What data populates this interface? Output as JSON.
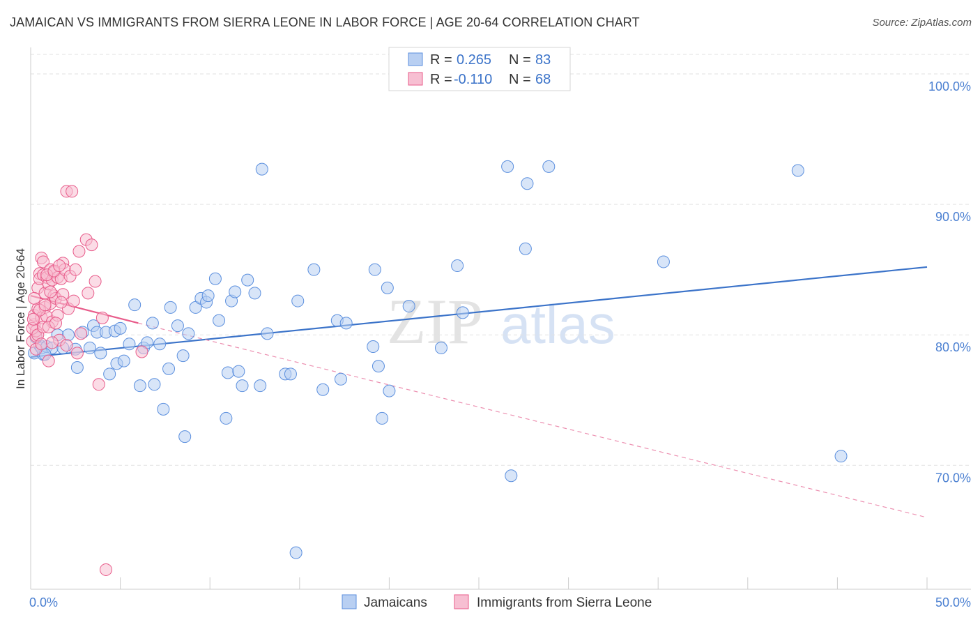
{
  "title": "JAMAICAN VS IMMIGRANTS FROM SIERRA LEONE IN LABOR FORCE | AGE 20-64 CORRELATION CHART",
  "source": "Source: ZipAtlas.com",
  "watermark": {
    "zip": "ZIP",
    "atlas": "atlas"
  },
  "colors": {
    "blue": "#5b8fde",
    "blue_fill": "#b8cff2",
    "pink": "#e85b8a",
    "pink_fill": "#f7bfd2",
    "tick": "#4a7fd1"
  },
  "legend": {
    "rows": [
      {
        "r_label": "R =",
        "r_value": "0.265",
        "n_label": "N =",
        "n_value": "83"
      },
      {
        "r_label": "R =",
        "r_value": "-0.110",
        "n_label": "N =",
        "n_value": "68"
      }
    ]
  },
  "bottom_legend": [
    "Jamaicans",
    "Immigrants from Sierra Leone"
  ],
  "chart_data": {
    "type": "scatter",
    "title": "JAMAICAN VS IMMIGRANTS FROM SIERRA LEONE IN LABOR FORCE | AGE 20-64 CORRELATION CHART",
    "xlabel": "",
    "ylabel": "In Labor Force | Age 20-64",
    "xlim": [
      0,
      50
    ],
    "ylim": [
      60.5,
      101.5
    ],
    "x_tick_labels": [
      "0.0%",
      "50.0%"
    ],
    "y_ticks": [
      70,
      80,
      90,
      100
    ],
    "y_tick_labels": [
      "70.0%",
      "80.0%",
      "90.0%",
      "100.0%"
    ],
    "grid": true,
    "legend_position": "top-center",
    "series": [
      {
        "name": "Jamaicans",
        "color": "#5b8fde",
        "trend": {
          "x": [
            0,
            50
          ],
          "y": [
            78.3,
            85.2
          ]
        },
        "points": [
          [
            0.2,
            78.6
          ],
          [
            0.5,
            79.2
          ],
          [
            0.7,
            78.5
          ],
          [
            0.6,
            79.0
          ],
          [
            0.9,
            79.1
          ],
          [
            1.2,
            79.0
          ],
          [
            1.5,
            80.0
          ],
          [
            1.8,
            79.0
          ],
          [
            2.1,
            80.0
          ],
          [
            2.5,
            78.9
          ],
          [
            2.6,
            77.5
          ],
          [
            2.9,
            80.2
          ],
          [
            3.3,
            79.0
          ],
          [
            3.5,
            80.7
          ],
          [
            3.7,
            80.2
          ],
          [
            3.9,
            78.6
          ],
          [
            4.2,
            80.2
          ],
          [
            4.4,
            77.0
          ],
          [
            4.7,
            80.3
          ],
          [
            4.8,
            77.8
          ],
          [
            5.0,
            80.5
          ],
          [
            5.2,
            78.0
          ],
          [
            5.5,
            79.3
          ],
          [
            5.8,
            82.3
          ],
          [
            6.1,
            76.1
          ],
          [
            6.3,
            79.0
          ],
          [
            6.5,
            79.4
          ],
          [
            6.8,
            80.9
          ],
          [
            6.9,
            76.2
          ],
          [
            7.2,
            79.3
          ],
          [
            7.4,
            74.3
          ],
          [
            7.7,
            77.4
          ],
          [
            7.8,
            82.1
          ],
          [
            8.2,
            80.7
          ],
          [
            8.5,
            78.4
          ],
          [
            8.6,
            72.2
          ],
          [
            8.8,
            80.1
          ],
          [
            9.2,
            82.1
          ],
          [
            9.5,
            82.8
          ],
          [
            9.8,
            82.5
          ],
          [
            9.9,
            83.0
          ],
          [
            10.3,
            84.3
          ],
          [
            10.5,
            81.1
          ],
          [
            10.9,
            73.6
          ],
          [
            11.0,
            77.1
          ],
          [
            11.2,
            82.6
          ],
          [
            11.4,
            83.3
          ],
          [
            11.6,
            77.2
          ],
          [
            11.8,
            76.1
          ],
          [
            12.1,
            84.2
          ],
          [
            12.5,
            83.2
          ],
          [
            12.8,
            76.1
          ],
          [
            12.9,
            92.7
          ],
          [
            13.2,
            80.1
          ],
          [
            14.2,
            77.0
          ],
          [
            14.5,
            77.0
          ],
          [
            14.8,
            63.3
          ],
          [
            14.9,
            82.6
          ],
          [
            15.8,
            85.0
          ],
          [
            16.3,
            75.8
          ],
          [
            17.1,
            81.1
          ],
          [
            17.3,
            76.6
          ],
          [
            17.6,
            80.9
          ],
          [
            19.1,
            79.1
          ],
          [
            19.2,
            85.0
          ],
          [
            19.4,
            77.6
          ],
          [
            19.6,
            73.6
          ],
          [
            19.9,
            83.6
          ],
          [
            20.0,
            75.7
          ],
          [
            21.1,
            82.2
          ],
          [
            22.9,
            79.0
          ],
          [
            23.8,
            85.3
          ],
          [
            24.1,
            81.7
          ],
          [
            26.6,
            92.9
          ],
          [
            26.8,
            69.2
          ],
          [
            27.6,
            86.6
          ],
          [
            27.7,
            91.6
          ],
          [
            28.9,
            92.9
          ],
          [
            35.3,
            85.6
          ],
          [
            42.8,
            92.6
          ],
          [
            45.2,
            70.7
          ],
          [
            0.3,
            79.8
          ],
          [
            0.8,
            78.5
          ]
        ]
      },
      {
        "name": "Immigrants from Sierra Leone",
        "color": "#e85b8a",
        "trend": {
          "x": [
            0,
            6
          ],
          "y": [
            83.0,
            80.9
          ]
        },
        "trend_dashed": {
          "x": [
            6,
            50
          ],
          "y": [
            80.9,
            66.0
          ]
        },
        "points": [
          [
            0.1,
            79.5
          ],
          [
            0.2,
            80.8
          ],
          [
            0.2,
            81.5
          ],
          [
            0.3,
            79.9
          ],
          [
            0.3,
            80.3
          ],
          [
            0.4,
            82.0
          ],
          [
            0.4,
            83.6
          ],
          [
            0.5,
            84.7
          ],
          [
            0.5,
            84.3
          ],
          [
            0.6,
            85.9
          ],
          [
            0.6,
            81.3
          ],
          [
            0.7,
            84.6
          ],
          [
            0.7,
            85.6
          ],
          [
            0.8,
            83.2
          ],
          [
            0.8,
            82.1
          ],
          [
            0.9,
            84.4
          ],
          [
            0.9,
            81.4
          ],
          [
            1.0,
            83.9
          ],
          [
            1.0,
            78.0
          ],
          [
            1.1,
            85.0
          ],
          [
            1.1,
            82.4
          ],
          [
            1.2,
            84.2
          ],
          [
            1.2,
            81.0
          ],
          [
            1.3,
            84.8
          ],
          [
            1.3,
            83.0
          ],
          [
            1.4,
            82.8
          ],
          [
            1.5,
            84.4
          ],
          [
            1.5,
            81.5
          ],
          [
            1.6,
            79.6
          ],
          [
            1.7,
            84.3
          ],
          [
            1.8,
            85.5
          ],
          [
            1.8,
            83.1
          ],
          [
            1.9,
            85.0
          ],
          [
            2.0,
            91.0
          ],
          [
            2.0,
            79.2
          ],
          [
            2.1,
            82.0
          ],
          [
            2.2,
            84.5
          ],
          [
            2.3,
            91.0
          ],
          [
            2.4,
            82.6
          ],
          [
            2.5,
            85.0
          ],
          [
            2.6,
            78.6
          ],
          [
            2.7,
            86.4
          ],
          [
            2.8,
            80.1
          ],
          [
            3.1,
            87.3
          ],
          [
            3.2,
            83.2
          ],
          [
            3.4,
            86.9
          ],
          [
            3.6,
            84.1
          ],
          [
            3.8,
            76.2
          ],
          [
            4.0,
            81.3
          ],
          [
            4.2,
            62.0
          ],
          [
            6.2,
            78.7
          ],
          [
            0.1,
            80.5
          ],
          [
            0.2,
            82.8
          ],
          [
            0.3,
            78.9
          ],
          [
            0.4,
            80.0
          ],
          [
            0.5,
            81.9
          ],
          [
            0.6,
            79.3
          ],
          [
            0.7,
            80.6
          ],
          [
            0.8,
            82.3
          ],
          [
            0.9,
            84.6
          ],
          [
            1.0,
            80.6
          ],
          [
            1.1,
            83.3
          ],
          [
            1.2,
            79.4
          ],
          [
            1.3,
            84.9
          ],
          [
            1.4,
            80.9
          ],
          [
            1.6,
            85.3
          ],
          [
            1.7,
            82.5
          ],
          [
            0.15,
            81.2
          ]
        ]
      }
    ]
  }
}
